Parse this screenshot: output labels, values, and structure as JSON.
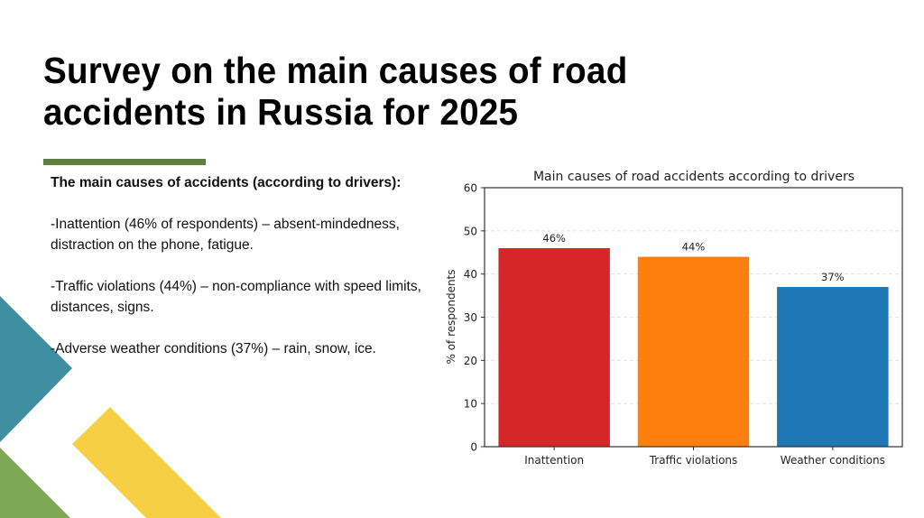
{
  "slide": {
    "title_lines": [
      "Survey on the main causes of road",
      "accidents in Russia for 2025"
    ],
    "accent_color": "#5e7f3f"
  },
  "body": {
    "heading": "The main causes of accidents (according to drivers):",
    "items": [
      " -Inattention (46% of respondents) – absent-mindedness, distraction on the phone, fatigue.",
      "-Traffic violations (44%) – non-compliance with speed limits, distances, signs.",
      " -Adverse weather conditions (37%) – rain, snow, ice."
    ]
  },
  "decorations": {
    "teal": "#3f8fa0",
    "green": "#7da855",
    "yellow": "#f7cf45"
  },
  "chart_data": {
    "type": "bar",
    "title": "Main causes of road accidents according to drivers",
    "xlabel": "",
    "ylabel": "% of respondents",
    "categories": [
      "Inattention",
      "Traffic violations",
      "Weather conditions"
    ],
    "values": [
      46,
      44,
      37
    ],
    "value_labels": [
      "46%",
      "44%",
      "37%"
    ],
    "colors": [
      "#d62728",
      "#ff7f0e",
      "#1f77b4"
    ],
    "ylim": [
      0,
      60
    ],
    "yticks": [
      0,
      10,
      20,
      30,
      40,
      50,
      60
    ],
    "grid": "y dashed",
    "legend": "none"
  }
}
